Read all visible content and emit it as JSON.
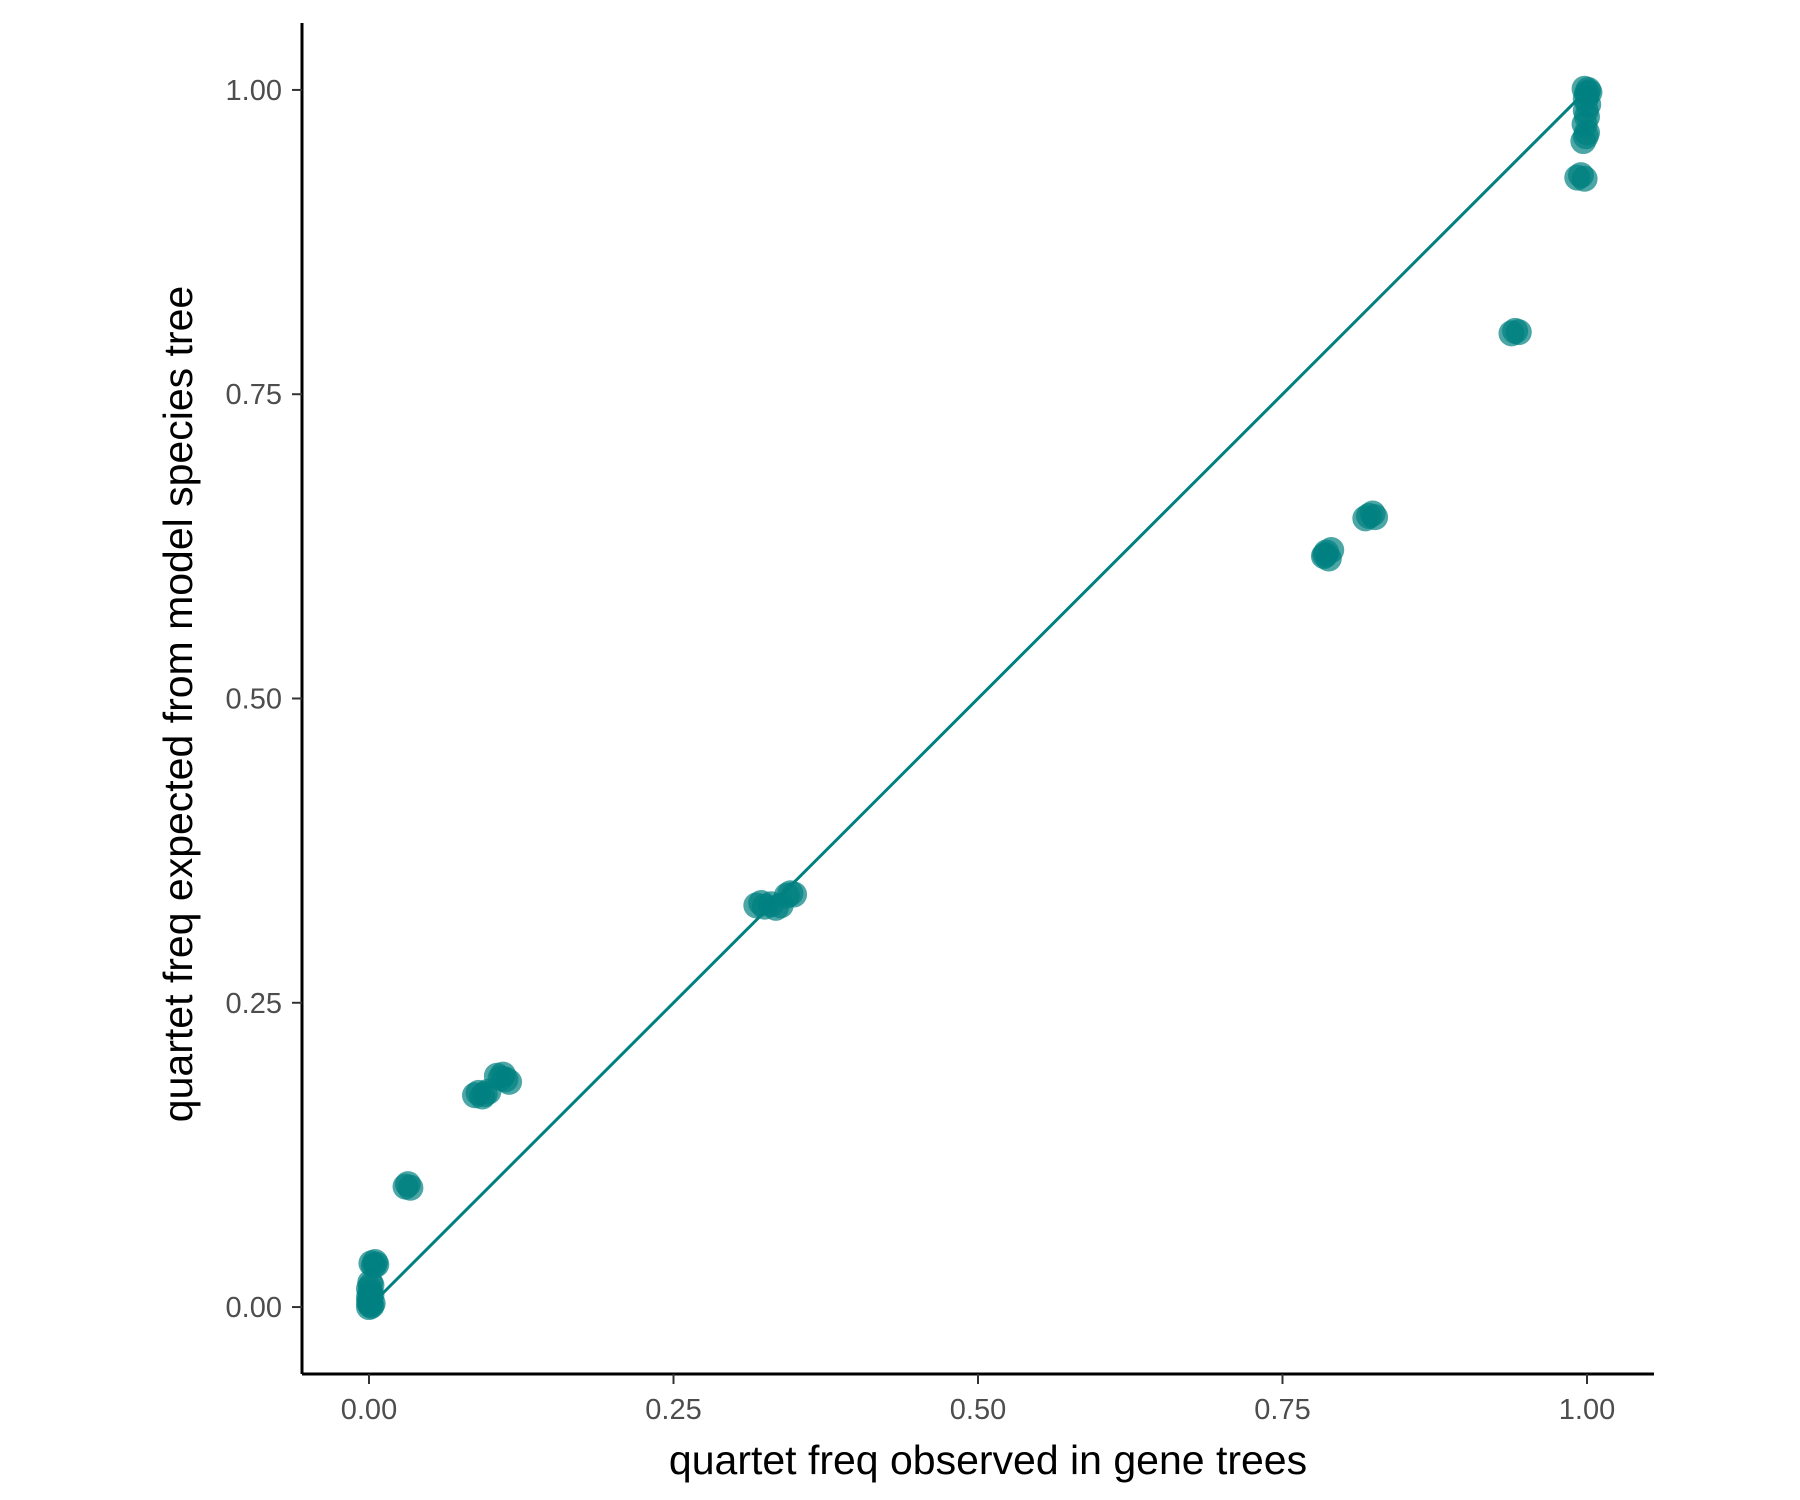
{
  "chart_data": {
    "type": "scatter",
    "title": "",
    "xlabel": "quartet freq observed in gene trees",
    "ylabel": "quartet freq expected from model species tree",
    "xlim": [
      -0.055,
      1.055
    ],
    "ylim": [
      -0.055,
      1.055
    ],
    "x_ticks": [
      "0.00",
      "0.25",
      "0.50",
      "0.75",
      "1.00"
    ],
    "y_ticks": [
      "0.00",
      "0.25",
      "0.50",
      "0.75",
      "1.00"
    ],
    "x_tick_values": [
      0,
      0.25,
      0.5,
      0.75,
      1.0
    ],
    "y_tick_values": [
      0,
      0.25,
      0.5,
      0.75,
      1.0
    ],
    "grid": false,
    "legend": "none",
    "reference_line": {
      "type": "identity",
      "from": [
        0,
        0
      ],
      "to": [
        1,
        1
      ],
      "color": "#008080"
    },
    "point_color": "#008080",
    "point_opacity": 0.7,
    "series": [
      {
        "points": [
          [
            0.0,
            0.0
          ],
          [
            0.001,
            0.002
          ],
          [
            0.0,
            0.004
          ],
          [
            0.002,
            0.001
          ],
          [
            0.001,
            0.006
          ],
          [
            0.0,
            0.008
          ],
          [
            0.002,
            0.01
          ],
          [
            0.001,
            0.012
          ],
          [
            0.0,
            0.015
          ],
          [
            0.002,
            0.018
          ],
          [
            0.001,
            0.02
          ],
          [
            0.003,
            0.003
          ],
          [
            0.004,
            0.034
          ],
          [
            0.002,
            0.036
          ],
          [
            0.006,
            0.035
          ],
          [
            0.005,
            0.037
          ],
          [
            0.03,
            0.099
          ],
          [
            0.032,
            0.101
          ],
          [
            0.034,
            0.098
          ],
          [
            0.087,
            0.174
          ],
          [
            0.09,
            0.176
          ],
          [
            0.093,
            0.173
          ],
          [
            0.095,
            0.175
          ],
          [
            0.098,
            0.177
          ],
          [
            0.105,
            0.19
          ],
          [
            0.108,
            0.188
          ],
          [
            0.11,
            0.191
          ],
          [
            0.112,
            0.187
          ],
          [
            0.115,
            0.185
          ],
          [
            0.318,
            0.33
          ],
          [
            0.322,
            0.332
          ],
          [
            0.325,
            0.329
          ],
          [
            0.33,
            0.331
          ],
          [
            0.334,
            0.328
          ],
          [
            0.338,
            0.33
          ],
          [
            0.343,
            0.338
          ],
          [
            0.346,
            0.34
          ],
          [
            0.349,
            0.339
          ],
          [
            0.784,
            0.617
          ],
          [
            0.786,
            0.62
          ],
          [
            0.788,
            0.615
          ],
          [
            0.79,
            0.622
          ],
          [
            0.785,
            0.618
          ],
          [
            0.818,
            0.648
          ],
          [
            0.821,
            0.65
          ],
          [
            0.824,
            0.652
          ],
          [
            0.826,
            0.649
          ],
          [
            0.938,
            0.8
          ],
          [
            0.941,
            0.802
          ],
          [
            0.944,
            0.801
          ],
          [
            0.992,
            0.928
          ],
          [
            0.995,
            0.93
          ],
          [
            0.998,
            0.927
          ],
          [
            0.997,
            0.958
          ],
          [
            0.999,
            0.962
          ],
          [
            1.0,
            0.965
          ],
          [
            0.998,
            0.972
          ],
          [
            1.0,
            0.978
          ],
          [
            0.999,
            0.983
          ],
          [
            1.001,
            0.988
          ],
          [
            0.999,
            0.993
          ],
          [
            1.0,
            0.997
          ],
          [
            1.001,
            1.0
          ],
          [
            0.998,
            1.001
          ],
          [
            1.002,
            0.998
          ]
        ]
      }
    ]
  }
}
